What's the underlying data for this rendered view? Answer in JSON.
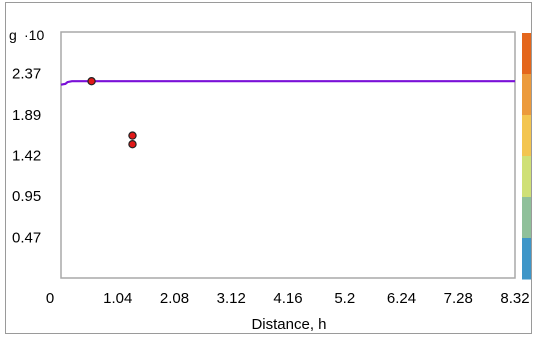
{
  "chart_data": {
    "type": "scatter",
    "ylabel": "g",
    "y_multiplier_label": "·10",
    "xlabel": "Distance, h",
    "x_ticks": [
      "0",
      "1.04",
      "2.08",
      "3.12",
      "4.16",
      "5.2",
      "6.24",
      "7.28",
      "8.32"
    ],
    "y_ticks": [
      "0.47",
      "0.95",
      "1.42",
      "1.89",
      "2.37"
    ],
    "xlim": [
      0,
      8.32
    ],
    "ylim": [
      0,
      2.85
    ],
    "grid": false,
    "points": [
      {
        "x": 0.56,
        "y": 2.28
      },
      {
        "x": 1.31,
        "y": 1.65
      },
      {
        "x": 1.31,
        "y": 1.55
      }
    ],
    "model_line": {
      "x": [
        0.0,
        0.08,
        0.12,
        0.2,
        0.4,
        0.7,
        1.0,
        2.0,
        4.0,
        6.0,
        8.32
      ],
      "y": [
        2.24,
        2.25,
        2.27,
        2.28,
        2.28,
        2.28,
        2.28,
        2.28,
        2.28,
        2.28,
        2.28
      ]
    },
    "colors": {
      "line": "#7a10d8",
      "point_fill": "#e01818",
      "point_stroke": "#222222",
      "axis": "#a8a8a8",
      "colorbar": [
        "#e4661c",
        "#ec9a3c",
        "#f3c550",
        "#cfe076",
        "#8fc09a",
        "#3e96c8"
      ]
    }
  }
}
